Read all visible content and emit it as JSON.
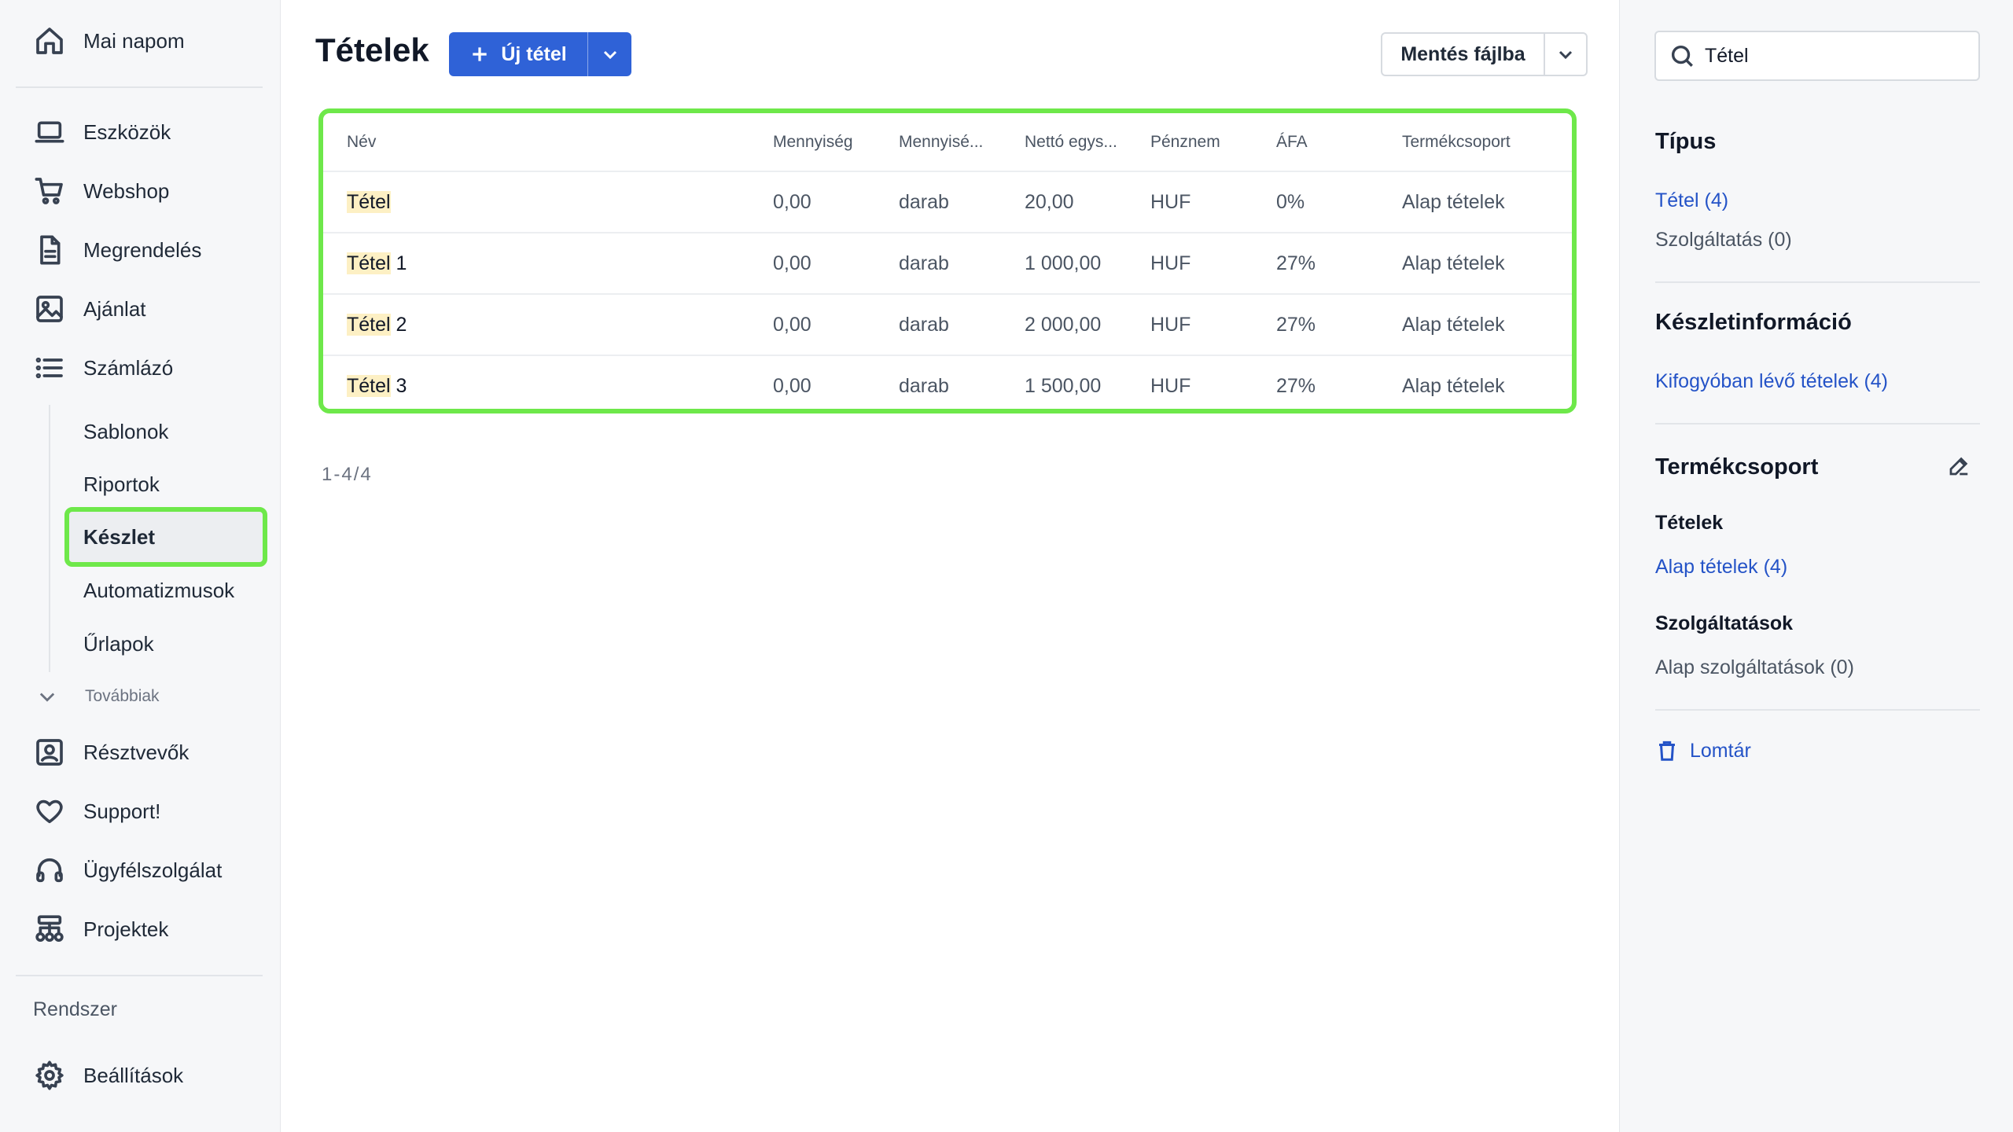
{
  "sidebar": {
    "items_top": [
      {
        "label": "Mai napom",
        "icon": "home-icon"
      },
      {
        "label": "Eszközök",
        "icon": "laptop-icon"
      },
      {
        "label": "Webshop",
        "icon": "cart-icon"
      },
      {
        "label": "Megrendelés",
        "icon": "document-icon"
      },
      {
        "label": "Ajánlat",
        "icon": "image-icon"
      },
      {
        "label": "Számlázó",
        "icon": "list-icon"
      }
    ],
    "sub_items": [
      "Sablonok",
      "Riportok",
      "Készlet",
      "Automatizmusok",
      "Űrlapok"
    ],
    "active_sub": "Készlet",
    "more_label": "Továbbiak",
    "items_bottom": [
      {
        "label": "Résztvevők",
        "icon": "contact-icon"
      },
      {
        "label": "Support!",
        "icon": "heart-icon"
      },
      {
        "label": "Ügyfélszolgálat",
        "icon": "headphones-icon"
      },
      {
        "label": "Projektek",
        "icon": "hierarchy-icon"
      }
    ],
    "system_label": "Rendszer",
    "settings_label": "Beállítások"
  },
  "main": {
    "title": "Tételek",
    "new_button": "Új tétel",
    "save_button": "Mentés fájlba",
    "table": {
      "columns": [
        "Név",
        "Mennyiség",
        "Mennyisé...",
        "Nettó egys...",
        "Pénznem",
        "ÁFA",
        "Termékcsoport"
      ],
      "rows": [
        {
          "name_hl": "Tétel",
          "name_rest": "",
          "qty": "0,00",
          "unit": "darab",
          "price": "20,00",
          "currency": "HUF",
          "vat": "0%",
          "group": "Alap tételek"
        },
        {
          "name_hl": "Tétel",
          "name_rest": " 1",
          "qty": "0,00",
          "unit": "darab",
          "price": "1 000,00",
          "currency": "HUF",
          "vat": "27%",
          "group": "Alap tételek"
        },
        {
          "name_hl": "Tétel",
          "name_rest": " 2",
          "qty": "0,00",
          "unit": "darab",
          "price": "2 000,00",
          "currency": "HUF",
          "vat": "27%",
          "group": "Alap tételek"
        },
        {
          "name_hl": "Tétel",
          "name_rest": " 3",
          "qty": "0,00",
          "unit": "darab",
          "price": "1 500,00",
          "currency": "HUF",
          "vat": "27%",
          "group": "Alap tételek"
        }
      ]
    },
    "pager": "1-4/4"
  },
  "right": {
    "search_value": "Tétel",
    "type_heading": "Típus",
    "type_item": "Tétel (4)",
    "service_item": "Szolgáltatás (0)",
    "stock_heading": "Készletinformáció",
    "stock_link": "Kifogyóban lévő tételek (4)",
    "group_heading": "Termékcsoport",
    "items_sub": "Tételek",
    "items_link": "Alap tételek (4)",
    "services_sub": "Szolgáltatások",
    "services_item": "Alap szolgáltatások (0)",
    "trash_label": "Lomtár"
  },
  "colors": {
    "accent": "#2f62d7",
    "highlight": "#6ee84a",
    "link": "#2453c7"
  }
}
